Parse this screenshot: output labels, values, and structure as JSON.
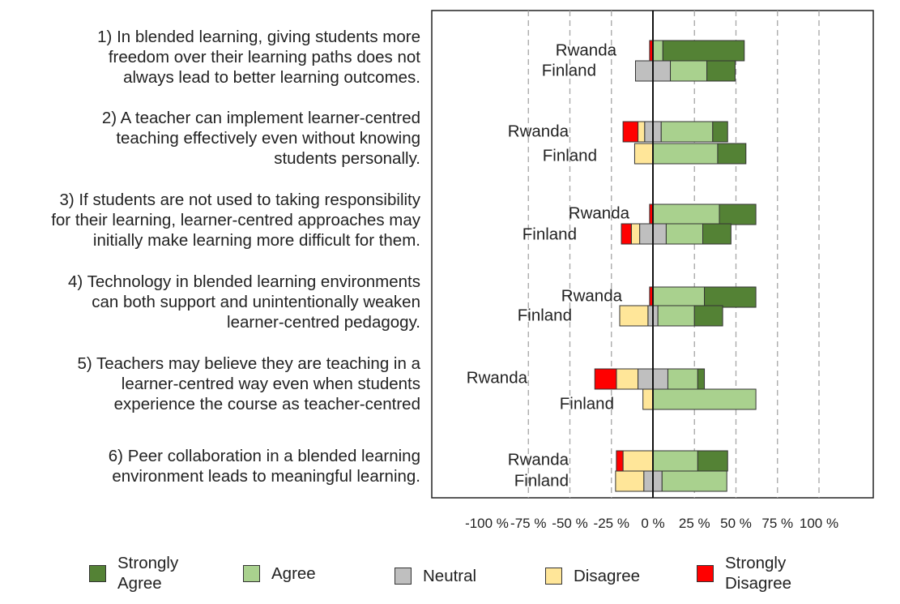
{
  "chart_data": {
    "type": "bar",
    "orientation": "horizontal-diverging-stacked",
    "xlim": [
      -100,
      100
    ],
    "x_tick_labels": [
      "-100 %",
      "-75 %",
      "-50 %",
      "-25 %",
      "0 %",
      "25 %",
      "50 %",
      "75 %",
      "100 %"
    ],
    "grid": "vertical dashed",
    "legend_position": "bottom",
    "categories": [
      {
        "label": "Strongly\nAgree",
        "color": "#548235"
      },
      {
        "label": "Agree",
        "color": "#a9d18e"
      },
      {
        "label": "Neutral",
        "color": "#bfbfbf"
      },
      {
        "label": "Disagree",
        "color": "#ffe699"
      },
      {
        "label": "Strongly\nDisagree",
        "color": "#ff0000"
      }
    ],
    "statements": [
      {
        "text": "1) In blended learning, giving students more\nfreedom over their learning paths does not\nalways lead to better learning outcomes.",
        "groups": [
          {
            "country": "Rwanda",
            "strongly_disagree": 2,
            "disagree": 0,
            "neutral": 0,
            "agree": 6,
            "strongly_agree": 49
          },
          {
            "country": "Finland",
            "strongly_disagree": 0,
            "disagree": 0,
            "neutral": 21,
            "agree": 22,
            "strongly_agree": 17
          }
        ]
      },
      {
        "text": "2) A teacher can implement learner-centred\nteaching effectively even without knowing\nstudents personally.",
        "groups": [
          {
            "country": "Rwanda",
            "strongly_disagree": 9,
            "disagree": 4,
            "neutral": 10,
            "agree": 31,
            "strongly_agree": 9
          },
          {
            "country": "Finland",
            "strongly_disagree": 0,
            "disagree": 11,
            "neutral": 0,
            "agree": 39,
            "strongly_agree": 17
          }
        ]
      },
      {
        "text": "3) If students are not used to taking responsibility\nfor their learning, learner-centred approaches may\ninitially make learning more difficult for them.",
        "groups": [
          {
            "country": "Rwanda",
            "strongly_disagree": 2,
            "disagree": 0,
            "neutral": 0,
            "agree": 40,
            "strongly_agree": 22
          },
          {
            "country": "Finland",
            "strongly_disagree": 6,
            "disagree": 5,
            "neutral": 16,
            "agree": 22,
            "strongly_agree": 17
          }
        ]
      },
      {
        "text": "4) Technology in blended learning environments\ncan both support and unintentionally weaken\nlearner-centred pedagogy.",
        "groups": [
          {
            "country": "Rwanda",
            "strongly_disagree": 2,
            "disagree": 0,
            "neutral": 0,
            "agree": 31,
            "strongly_agree": 31
          },
          {
            "country": "Finland",
            "strongly_disagree": 0,
            "disagree": 17,
            "neutral": 6,
            "agree": 22,
            "strongly_agree": 17
          }
        ]
      },
      {
        "text": "5) Teachers may believe they are teaching in a\nlearner-centred way even when students\nexperience the course as teacher-centred",
        "groups": [
          {
            "country": "Rwanda",
            "strongly_disagree": 13,
            "disagree": 13,
            "neutral": 18,
            "agree": 18,
            "strongly_agree": 4
          },
          {
            "country": "Finland",
            "strongly_disagree": 0,
            "disagree": 6,
            "neutral": 0,
            "agree": 62,
            "strongly_agree": 0
          }
        ]
      },
      {
        "text": "6) Peer collaboration in a blended learning\nenvironment leads to meaningful learning.",
        "groups": [
          {
            "country": "Rwanda",
            "strongly_disagree": 4,
            "disagree": 18,
            "neutral": 0,
            "agree": 27,
            "strongly_agree": 18
          },
          {
            "country": "Finland",
            "strongly_disagree": 0,
            "disagree": 17,
            "neutral": 11,
            "agree": 39,
            "strongly_agree": 0
          }
        ]
      }
    ]
  }
}
